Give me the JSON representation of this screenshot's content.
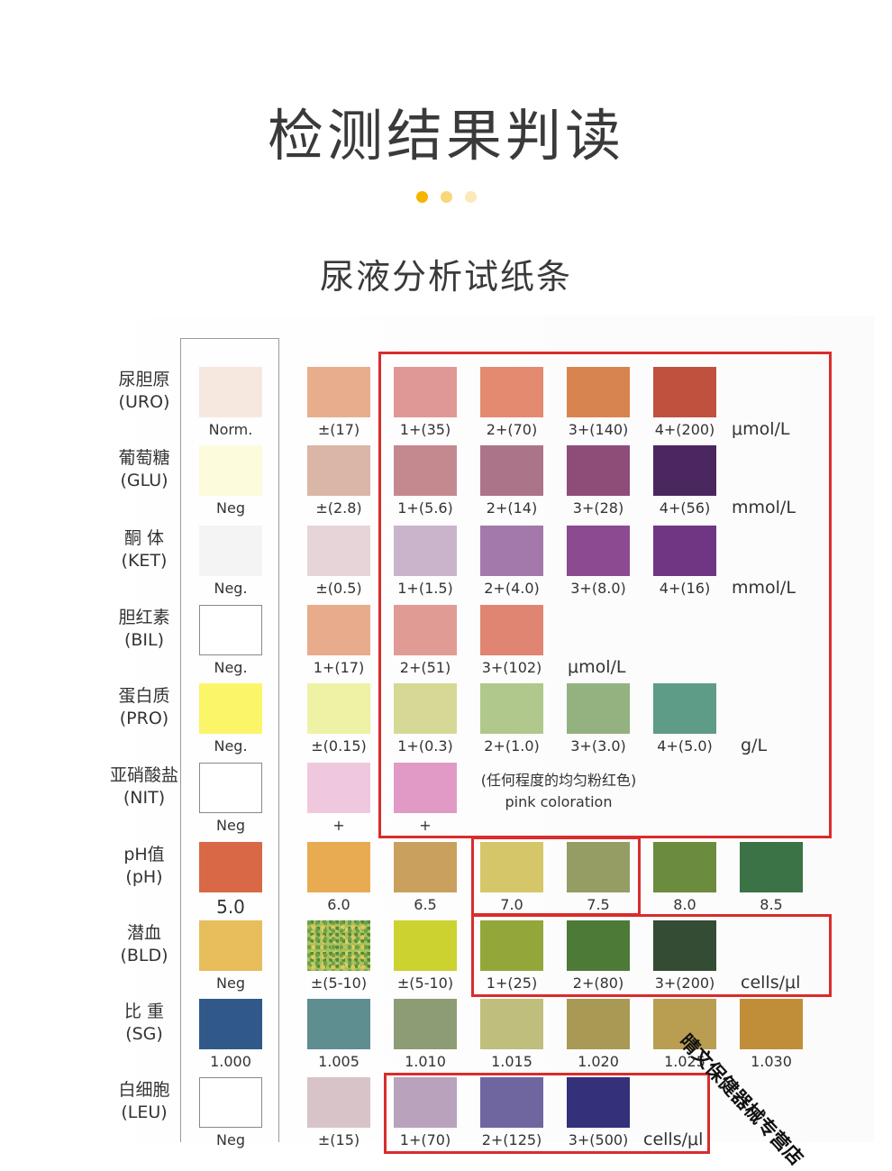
{
  "header": {
    "title": "检测结果判读",
    "dots": [
      "#f5b400",
      "#f8d77a",
      "#fbe9b8"
    ],
    "subtitle": "尿液分析试纸条"
  },
  "rows": [
    {
      "name_cn": "尿胆原",
      "name_en": "(URO)",
      "swatches": [
        {
          "color": "#f7e8df",
          "label": "Norm."
        },
        {
          "color": "#e8ad8c",
          "label": "±(17)"
        },
        {
          "color": "#e09894",
          "label": "1+(35)"
        },
        {
          "color": "#e48a70",
          "label": "2+(70)"
        },
        {
          "color": "#d7844e",
          "label": "3+(140)"
        },
        {
          "color": "#c0513e",
          "label": "4+(200)"
        }
      ],
      "unit": "μmol/L"
    },
    {
      "name_cn": "葡萄糖",
      "name_en": "(GLU)",
      "swatches": [
        {
          "color": "#fcfbdc",
          "label": "Neg"
        },
        {
          "color": "#d9b6a6",
          "label": "±(2.8)"
        },
        {
          "color": "#c4898e",
          "label": "1+(5.6)"
        },
        {
          "color": "#ac7488",
          "label": "2+(14)"
        },
        {
          "color": "#8e4d79",
          "label": "3+(28)"
        },
        {
          "color": "#4b2760",
          "label": "4+(56)"
        }
      ],
      "unit": "mmol/L"
    },
    {
      "name_cn": "酮 体",
      "name_en": "(KET)",
      "swatches": [
        {
          "color": "#f4f4f4",
          "label": "Neg."
        },
        {
          "color": "#e6d4d9",
          "label": "±(0.5)"
        },
        {
          "color": "#cab4cc",
          "label": "1+(1.5)"
        },
        {
          "color": "#a379ab",
          "label": "2+(4.0)"
        },
        {
          "color": "#8c4a90",
          "label": "3+(8.0)"
        },
        {
          "color": "#6f3683",
          "label": "4+(16)"
        }
      ],
      "unit": "mmol/L"
    },
    {
      "name_cn": "胆红素",
      "name_en": "(BIL)",
      "swatches": [
        {
          "color": "#ffffff",
          "label": "Neg."
        },
        {
          "color": "#e8ab8b",
          "label": "1+(17)"
        },
        {
          "color": "#e19b95",
          "label": "2+(51)"
        },
        {
          "color": "#e08572",
          "label": "3+(102)"
        }
      ],
      "unit": "μmol/L"
    },
    {
      "name_cn": "蛋白质",
      "name_en": "(PRO)",
      "swatches": [
        {
          "color": "#fbf56a",
          "label": "Neg."
        },
        {
          "color": "#eef2a4",
          "label": "±(0.15)"
        },
        {
          "color": "#d6d895",
          "label": "1+(0.3)"
        },
        {
          "color": "#b0c88b",
          "label": "2+(1.0)"
        },
        {
          "color": "#93b280",
          "label": "3+(3.0)"
        },
        {
          "color": "#5e9c88",
          "label": "4+(5.0)"
        }
      ],
      "unit": "g/L"
    },
    {
      "name_cn": "亚硝酸盐",
      "name_en": "(NIT)",
      "swatches": [
        {
          "color": "#ffffff",
          "label": "Neg"
        },
        {
          "color": "#f0c8de",
          "label": "+"
        },
        {
          "color": "#e19ac6",
          "label": "+"
        }
      ],
      "note_cn": "(任何程度的均匀粉红色)",
      "note_en": "pink coloration"
    },
    {
      "name_cn": "pH值",
      "name_en": "(pH)",
      "swatches": [
        {
          "color": "#d86846",
          "label": "5.0"
        },
        {
          "color": "#e8ab52",
          "label": "6.0"
        },
        {
          "color": "#c9a05e",
          "label": "6.5"
        },
        {
          "color": "#d6c66a",
          "label": "7.0"
        },
        {
          "color": "#959d65",
          "label": "7.5"
        },
        {
          "color": "#6b8b3f",
          "label": "8.0"
        },
        {
          "color": "#3c7346",
          "label": "8.5"
        }
      ]
    },
    {
      "name_cn": "潜血",
      "name_en": "(BLD)",
      "swatches": [
        {
          "color": "#e8bd5c",
          "label": "Neg"
        },
        {
          "color": "#a8c25a",
          "label": "±(5-10)"
        },
        {
          "color": "#ccd22f",
          "label": "±(5-10)"
        },
        {
          "color": "#93a639",
          "label": "1+(25)"
        },
        {
          "color": "#4e7a37",
          "label": "2+(80)"
        },
        {
          "color": "#344c33",
          "label": "3+(200)"
        }
      ],
      "unit": "cells/μl"
    },
    {
      "name_cn": "比 重",
      "name_en": "(SG)",
      "swatches": [
        {
          "color": "#30598a",
          "label": "1.000"
        },
        {
          "color": "#5f8e90",
          "label": "1.005"
        },
        {
          "color": "#8d9c74",
          "label": "1.010"
        },
        {
          "color": "#bfbe7c",
          "label": "1.015"
        },
        {
          "color": "#a89a55",
          "label": "1.020"
        },
        {
          "color": "#b99e52",
          "label": "1.025"
        },
        {
          "color": "#c08e38",
          "label": "1.030"
        }
      ]
    },
    {
      "name_cn": "白细胞",
      "name_en": "(LEU)",
      "swatches": [
        {
          "color": "#ffffff",
          "label": "Neg"
        },
        {
          "color": "#d8c4c8",
          "label": "±(15)"
        },
        {
          "color": "#b8a2bc",
          "label": "1+(70)"
        },
        {
          "color": "#6f66a0",
          "label": "2+(125)"
        },
        {
          "color": "#35307a",
          "label": "3+(500)"
        }
      ],
      "unit": "cells/μl"
    }
  ],
  "watermark": "晴文保健器械专营店",
  "highlight_color": "#d92c2c"
}
